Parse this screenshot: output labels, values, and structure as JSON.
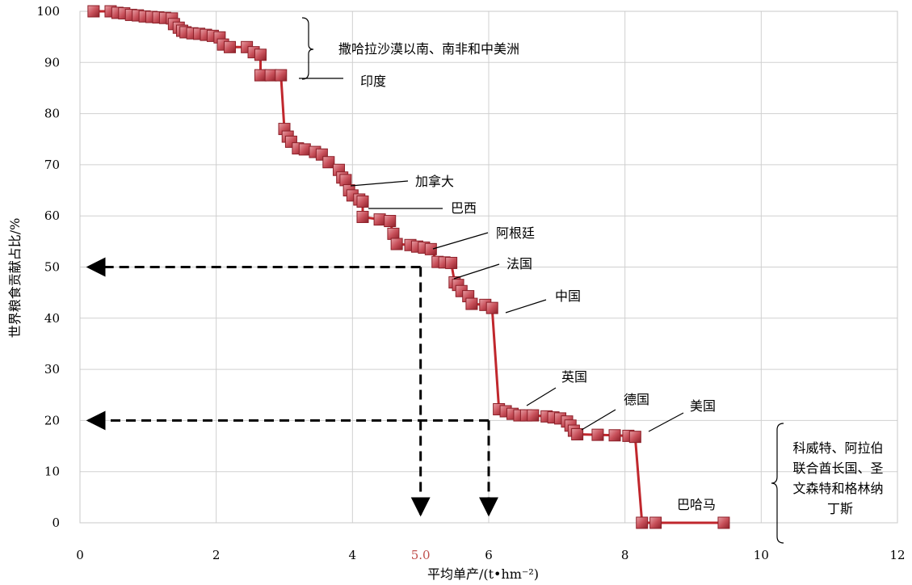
{
  "chart_data": {
    "type": "line",
    "title": "",
    "xlabel": "平均单产/(t•hm⁻²)",
    "ylabel": "世界粮食贡献占比/%",
    "xlim": [
      0,
      12
    ],
    "ylim": [
      0,
      100
    ],
    "xticks": [
      "0",
      "2",
      "4",
      "6",
      "8",
      "10",
      "12"
    ],
    "yticks": [
      "0",
      "10",
      "20",
      "30",
      "40",
      "50",
      "60",
      "70",
      "80",
      "90",
      "100"
    ],
    "extra_xtick": {
      "value": 5.0,
      "label": "5.0",
      "color": "#c0504d"
    },
    "grid": true,
    "line_color": "#c0272d",
    "marker_color": "#c8505a",
    "series": [
      {
        "points": [
          [
            0.2,
            100
          ],
          [
            0.45,
            100
          ],
          [
            0.55,
            99.7
          ],
          [
            0.65,
            99.6
          ],
          [
            0.75,
            99.3
          ],
          [
            0.85,
            99.2
          ],
          [
            0.95,
            99
          ],
          [
            1.05,
            98.9
          ],
          [
            1.15,
            98.8
          ],
          [
            1.25,
            98.7
          ],
          [
            1.35,
            98.6
          ],
          [
            1.38,
            97.5
          ],
          [
            1.45,
            96.8
          ],
          [
            1.5,
            96.2
          ],
          [
            1.55,
            95.9
          ],
          [
            1.65,
            95.7
          ],
          [
            1.75,
            95.6
          ],
          [
            1.85,
            95.4
          ],
          [
            1.95,
            95.2
          ],
          [
            2.05,
            94.9
          ],
          [
            2.1,
            93.5
          ],
          [
            2.2,
            93.0
          ],
          [
            2.45,
            93.0
          ],
          [
            2.55,
            92.0
          ],
          [
            2.65,
            91.5
          ],
          [
            2.65,
            87.5
          ],
          [
            2.8,
            87.5
          ],
          [
            2.95,
            87.5
          ],
          [
            3.0,
            77.0
          ],
          [
            3.05,
            75.5
          ],
          [
            3.1,
            74.5
          ],
          [
            3.2,
            73.2
          ],
          [
            3.3,
            73.0
          ],
          [
            3.45,
            72.5
          ],
          [
            3.55,
            72.0
          ],
          [
            3.65,
            70.5
          ],
          [
            3.8,
            69.0
          ],
          [
            3.85,
            67.5
          ],
          [
            3.9,
            67.0
          ],
          [
            3.95,
            65.0
          ],
          [
            4.0,
            64.0
          ],
          [
            4.1,
            63.2
          ],
          [
            4.15,
            62.8
          ],
          [
            4.15,
            59.8
          ],
          [
            4.4,
            59.3
          ],
          [
            4.55,
            59.0
          ],
          [
            4.6,
            56.5
          ],
          [
            4.65,
            54.5
          ],
          [
            4.85,
            54.3
          ],
          [
            4.95,
            54.0
          ],
          [
            5.05,
            53.8
          ],
          [
            5.15,
            53.5
          ],
          [
            5.25,
            51.0
          ],
          [
            5.35,
            50.9
          ],
          [
            5.45,
            50.8
          ],
          [
            5.5,
            47.0
          ],
          [
            5.55,
            46.5
          ],
          [
            5.6,
            45.3
          ],
          [
            5.7,
            44.3
          ],
          [
            5.75,
            42.8
          ],
          [
            5.95,
            42.6
          ],
          [
            6.05,
            42.0
          ],
          [
            6.15,
            22.2
          ],
          [
            6.25,
            21.8
          ],
          [
            6.35,
            21.3
          ],
          [
            6.45,
            21.0
          ],
          [
            6.55,
            21.0
          ],
          [
            6.65,
            21.0
          ],
          [
            6.85,
            20.8
          ],
          [
            6.95,
            20.6
          ],
          [
            7.05,
            20.4
          ],
          [
            7.15,
            19.8
          ],
          [
            7.2,
            19.0
          ],
          [
            7.25,
            18.0
          ],
          [
            7.3,
            17.3
          ],
          [
            7.6,
            17.2
          ],
          [
            7.85,
            17.1
          ],
          [
            8.05,
            17.0
          ],
          [
            8.15,
            16.8
          ],
          [
            8.25,
            0
          ],
          [
            8.45,
            0
          ],
          [
            9.45,
            0
          ]
        ]
      }
    ],
    "reference_lines": [
      {
        "x": 5.0,
        "y": 50
      },
      {
        "x": 6.0,
        "y": 20
      }
    ],
    "annotations": [
      {
        "label": "撒哈拉沙漠以南、南非和中美洲",
        "type": "brace"
      },
      {
        "label": "印度"
      },
      {
        "label": "加拿大"
      },
      {
        "label": "巴西"
      },
      {
        "label": "阿根廷"
      },
      {
        "label": "法国"
      },
      {
        "label": "中国"
      },
      {
        "label": "英国"
      },
      {
        "label": "德国"
      },
      {
        "label": "美国"
      },
      {
        "label": "巴哈马"
      },
      {
        "label": "科威特、阿拉伯联合酋长国、圣文森特和格林纳丁斯",
        "lines": [
          "科威特、阿拉伯",
          "联合酋长国、圣",
          "文森特和格林纳",
          "丁斯"
        ],
        "type": "brace"
      }
    ]
  }
}
